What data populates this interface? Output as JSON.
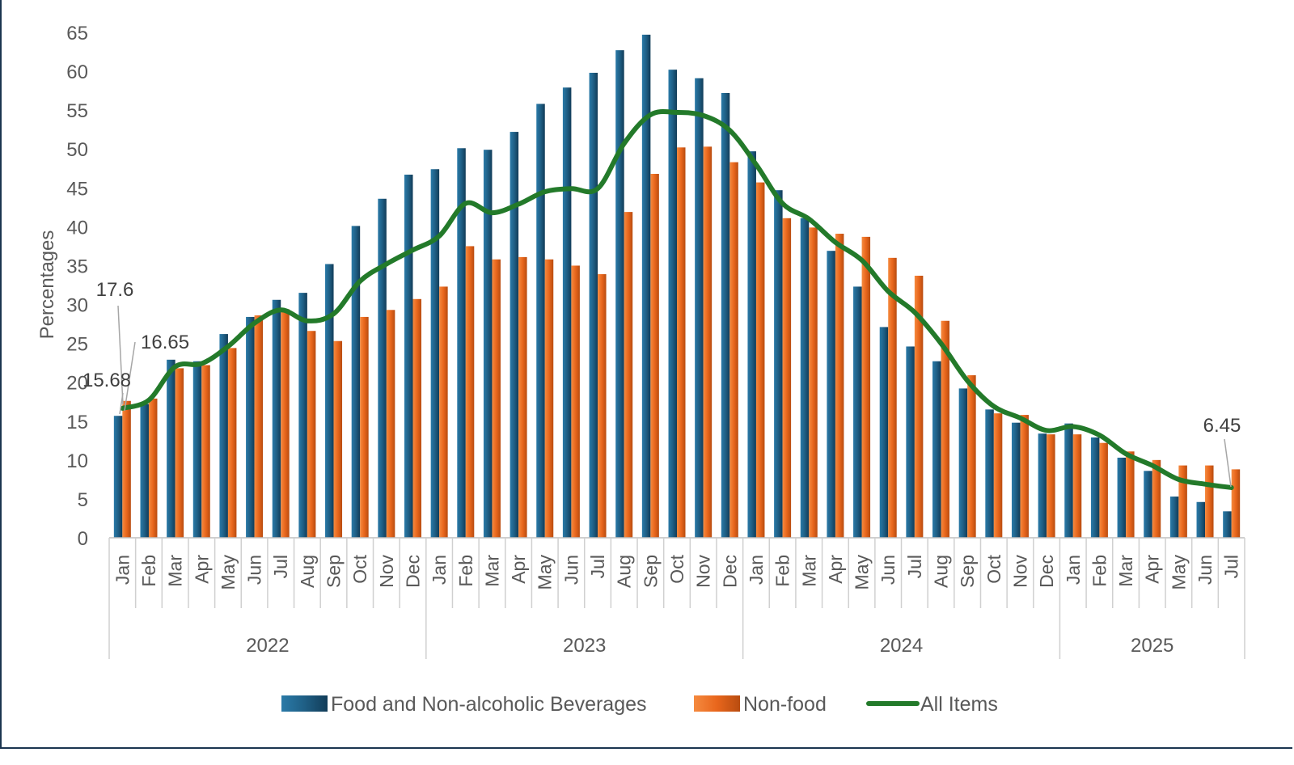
{
  "chart_data": {
    "type": "bar+line",
    "title": "",
    "ylabel": "Percentages",
    "xlabel": "",
    "ylim": [
      0,
      65
    ],
    "yticks": [
      0,
      5,
      10,
      15,
      20,
      25,
      30,
      35,
      40,
      45,
      50,
      55,
      60,
      65
    ],
    "grid": false,
    "legend_position": "bottom",
    "years": [
      {
        "label": "2022",
        "months": [
          "Jan",
          "Feb",
          "Mar",
          "Apr",
          "May",
          "Jun",
          "Jul",
          "Aug",
          "Sep",
          "Oct",
          "Nov",
          "Dec"
        ]
      },
      {
        "label": "2023",
        "months": [
          "Jan",
          "Feb",
          "Mar",
          "Apr",
          "May",
          "Jun",
          "Jul",
          "Aug",
          "Sep",
          "Oct",
          "Nov",
          "Dec"
        ]
      },
      {
        "label": "2024",
        "months": [
          "Jan",
          "Feb",
          "Mar",
          "Apr",
          "May",
          "Jun",
          "Jul",
          "Aug",
          "Sep",
          "Oct",
          "Nov",
          "Dec"
        ]
      },
      {
        "label": "2025",
        "months": [
          "Jan",
          "Feb",
          "Mar",
          "Apr",
          "May",
          "Jun",
          "Jul"
        ]
      }
    ],
    "series": [
      {
        "name": "Food and Non-alcoholic Beverages",
        "type": "bar",
        "color": "#1f5f85",
        "values": [
          15.68,
          17.2,
          22.9,
          22.7,
          26.2,
          28.4,
          30.6,
          31.5,
          35.2,
          40.1,
          43.6,
          46.7,
          47.4,
          50.1,
          49.9,
          52.2,
          55.8,
          57.9,
          59.8,
          62.7,
          64.7,
          60.2,
          59.1,
          57.2,
          49.7,
          44.7,
          41.1,
          36.9,
          32.3,
          27.1,
          24.6,
          22.7,
          19.2,
          16.5,
          14.8,
          13.4,
          14.7,
          12.9,
          10.3,
          8.6,
          5.3,
          4.6,
          3.4
        ]
      },
      {
        "name": "Non-food",
        "type": "bar",
        "color": "#e8661c",
        "values": [
          17.6,
          17.9,
          21.8,
          22.2,
          24.4,
          28.6,
          29.4,
          26.6,
          25.3,
          28.4,
          29.3,
          30.7,
          32.3,
          37.5,
          35.8,
          36.1,
          35.8,
          35.0,
          33.9,
          41.9,
          46.8,
          50.2,
          50.3,
          48.3,
          45.7,
          41.1,
          39.9,
          39.1,
          38.7,
          36.0,
          33.7,
          27.9,
          20.9,
          16.0,
          15.8,
          13.3,
          13.3,
          12.2,
          11.1,
          10.0,
          9.3,
          9.3,
          8.8
        ]
      },
      {
        "name": "All Items",
        "type": "line",
        "color": "#237a2a",
        "values": [
          16.65,
          17.7,
          22.0,
          22.4,
          24.6,
          27.6,
          29.3,
          27.9,
          28.8,
          33.0,
          35.2,
          37.0,
          38.8,
          43.0,
          41.8,
          42.9,
          44.5,
          44.9,
          44.9,
          50.7,
          54.4,
          54.7,
          54.3,
          52.4,
          48.0,
          43.0,
          41.0,
          38.0,
          35.7,
          31.7,
          29.0,
          25.0,
          20.2,
          16.9,
          15.4,
          13.8,
          14.3,
          13.2,
          10.8,
          9.3,
          7.5,
          6.9,
          6.45
        ]
      }
    ],
    "annotations": [
      {
        "text": "17.6",
        "series": "Non-food",
        "month": "Jan 2022"
      },
      {
        "text": "16.65",
        "series": "All Items",
        "month": "Jan 2022"
      },
      {
        "text": "15.68",
        "series": "Food and Non-alcoholic Beverages",
        "month": "Jan 2022"
      },
      {
        "text": "6.45",
        "series": "All Items",
        "month": "Jul 2025"
      }
    ]
  }
}
